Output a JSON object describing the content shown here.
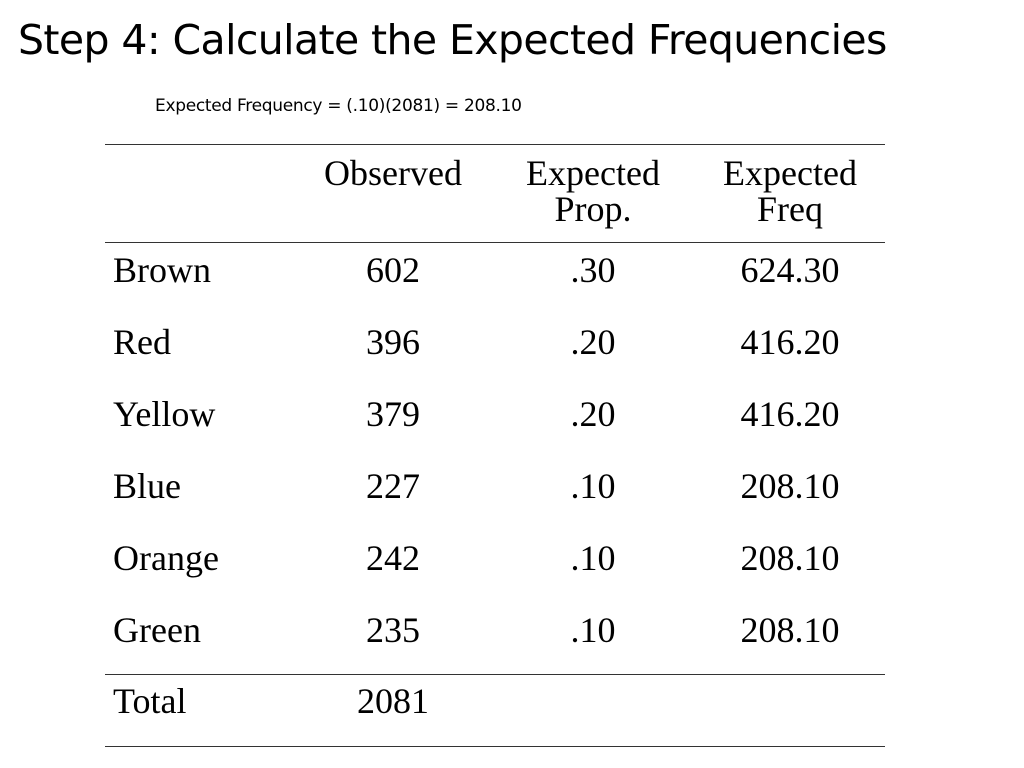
{
  "slide": {
    "title": "Step 4: Calculate the Expected Frequencies",
    "formula": "Expected Frequency = (.10)(2081) = 208.10"
  },
  "table": {
    "headers": {
      "observed": "Observed",
      "expected_prop_line1": "Expected",
      "expected_prop_line2": "Prop.",
      "expected_freq_line1": "Expected",
      "expected_freq_line2": "Freq"
    },
    "rows": [
      {
        "color": "Brown",
        "observed": "602",
        "expected_prop": ".30",
        "expected_freq": "624.30"
      },
      {
        "color": "Red",
        "observed": "396",
        "expected_prop": ".20",
        "expected_freq": "416.20"
      },
      {
        "color": "Yellow",
        "observed": "379",
        "expected_prop": ".20",
        "expected_freq": "416.20"
      },
      {
        "color": "Blue",
        "observed": "227",
        "expected_prop": ".10",
        "expected_freq": "208.10"
      },
      {
        "color": "Orange",
        "observed": "242",
        "expected_prop": ".10",
        "expected_freq": "208.10"
      },
      {
        "color": "Green",
        "observed": "235",
        "expected_prop": ".10",
        "expected_freq": "208.10"
      }
    ],
    "total": {
      "label": "Total",
      "observed": "2081"
    }
  }
}
